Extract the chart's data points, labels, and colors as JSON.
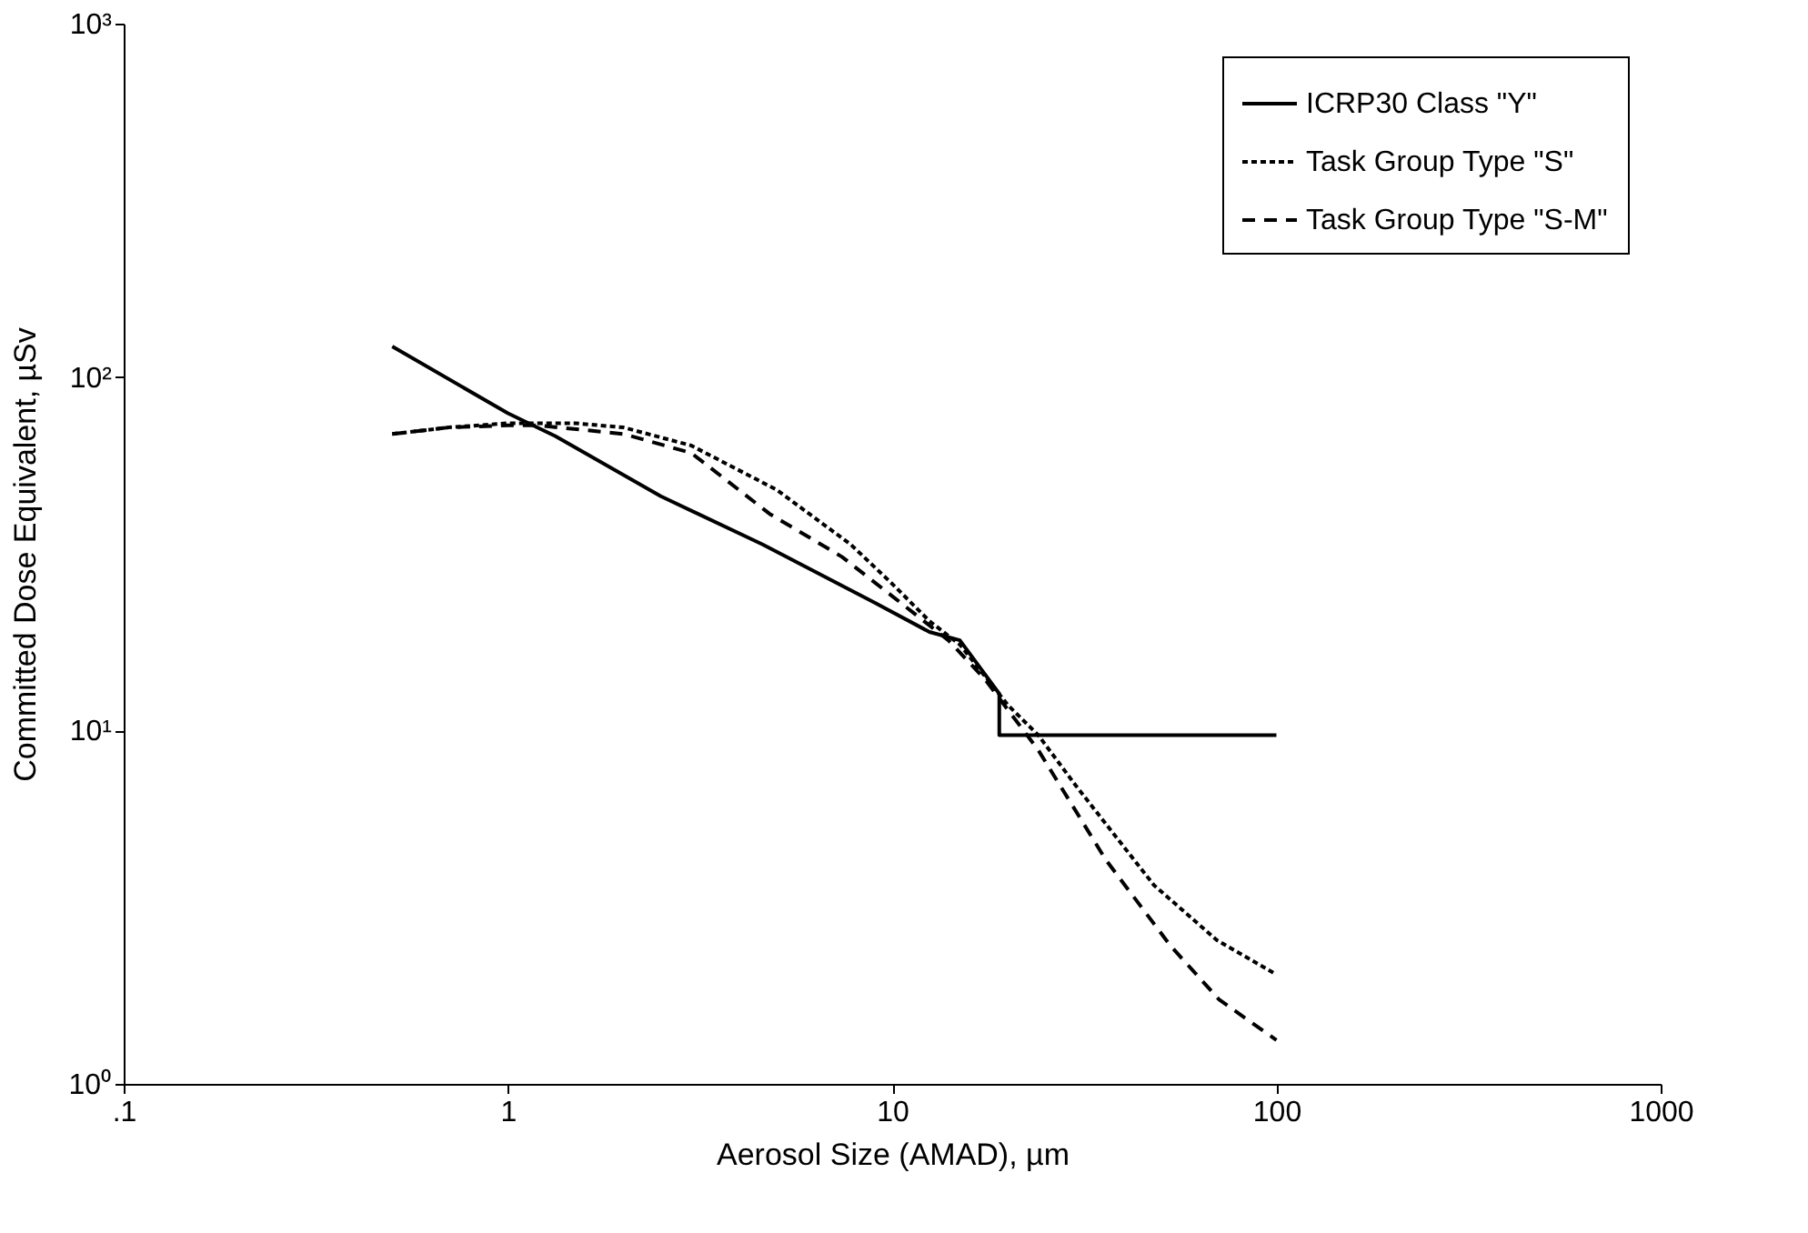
{
  "chart_data": {
    "type": "line",
    "xlabel": "Aerosol Size (AMAD), µm",
    "ylabel": "Committed Dose Equivalent, µSv",
    "log": "xy",
    "grid": false,
    "legend": "top right",
    "marker": "none",
    "xlim": [
      0.1,
      1000
    ],
    "xticks": [
      {
        "value": 0.1,
        "label": ".1"
      },
      1,
      10,
      100,
      1000
    ],
    "ylim": [
      1,
      1000
    ],
    "yticks": [
      {
        "value": 1,
        "label": "10⁰"
      },
      {
        "value": 10,
        "label": "10¹"
      },
      {
        "value": 100,
        "label": "10²"
      },
      {
        "value": 1000,
        "label": "10³"
      }
    ],
    "series": [
      {
        "name": "ICRP30 Class \"Y\"",
        "color": "#000000",
        "line_style": "solid",
        "x": [
          0.5,
          1,
          1.33,
          2.5,
          4.6,
          9,
          12.5,
          15,
          19,
          19,
          100
        ],
        "values": [
          122,
          79,
          68,
          46,
          33.6,
          23,
          19,
          18,
          12.7,
          9.7,
          9.7
        ]
      },
      {
        "name": "Task Group Type \"S\"",
        "color": "#000000",
        "line_style": "dotted",
        "x": [
          0.5,
          0.7,
          1,
          1.5,
          2,
          3,
          5,
          7.8,
          10,
          12.5,
          15,
          20,
          24,
          30,
          48,
          70,
          100
        ],
        "values": [
          69,
          72,
          74,
          74,
          72,
          64,
          48,
          33.6,
          26,
          20.4,
          17.5,
          11.8,
          9.7,
          7,
          3.65,
          2.55,
          2.04
        ]
      },
      {
        "name": "Task Group Type \"S-M\"",
        "color": "#000000",
        "line_style": "dashed",
        "x": [
          0.5,
          0.7,
          1,
          1.2,
          2,
          3,
          4.8,
          7.4,
          10,
          14,
          17.4,
          24,
          36,
          53,
          71,
          100
        ],
        "values": [
          69,
          72,
          73,
          73,
          69,
          61,
          41,
          31,
          24,
          18,
          14,
          8.8,
          4.3,
          2.46,
          1.73,
          1.33
        ]
      }
    ]
  }
}
